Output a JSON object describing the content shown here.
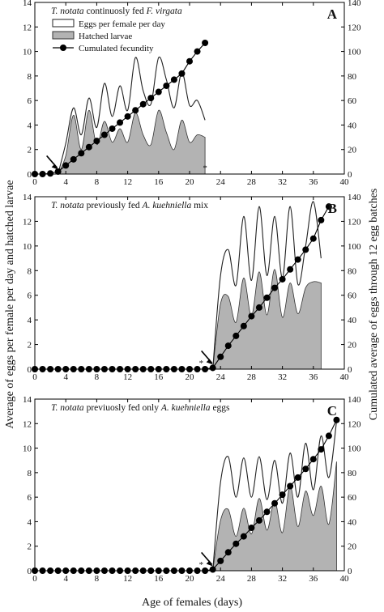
{
  "figure": {
    "y_left_label": "Average of eggs per female per day and hatched larvae",
    "y_right_label": "Cumulated average of eggs through 12 egg batches",
    "x_label": "Age of females (days)"
  },
  "chart_data": [
    {
      "type": "line",
      "panel": "A",
      "title_parts": [
        {
          "text": "T. notata",
          "italic": true
        },
        {
          "text": " continuosly fed ",
          "italic": false
        },
        {
          "text": "F. virgata",
          "italic": true
        }
      ],
      "xlim": [
        0,
        40
      ],
      "xticks": [
        0,
        4,
        8,
        12,
        16,
        20,
        24,
        28,
        32,
        36,
        40
      ],
      "ylim_left": [
        0,
        14
      ],
      "yticks_left": [
        0,
        2,
        4,
        6,
        8,
        10,
        12,
        14
      ],
      "ylim_right": [
        0,
        140
      ],
      "yticks_right": [
        0,
        20,
        40,
        60,
        80,
        100,
        120,
        140
      ],
      "legend": {
        "placement": "top-left",
        "entries": [
          {
            "label": "Eggs per female per day",
            "marker": "line-box"
          },
          {
            "label": "Hatched larvae",
            "marker": "gray-box"
          },
          {
            "label": "Cumulated fecundity",
            "marker": "line-dot"
          }
        ]
      },
      "annotations": [
        {
          "text": "*",
          "x": 22,
          "y": 0.4
        },
        {
          "text": "arrow",
          "x": 3,
          "y": 0.3
        }
      ],
      "series": [
        {
          "name": "Eggs per female per day",
          "axis": "left",
          "x": [
            3,
            4,
            5,
            6,
            7,
            8,
            9,
            10,
            11,
            12,
            13,
            14,
            15,
            16,
            17,
            18,
            19,
            20,
            21,
            22
          ],
          "y": [
            0,
            2.5,
            5.4,
            3.2,
            6.2,
            3.8,
            7.4,
            4.7,
            7.2,
            5.2,
            9.5,
            6.8,
            5.7,
            9.5,
            7.7,
            5.4,
            8.3,
            5.6,
            6.0,
            4.4
          ]
        },
        {
          "name": "Hatched larvae",
          "axis": "left",
          "x": [
            3,
            4,
            5,
            6,
            7,
            8,
            9,
            10,
            11,
            12,
            13,
            14,
            15,
            16,
            17,
            18,
            19,
            20,
            21,
            22
          ],
          "y": [
            0,
            1.5,
            4.8,
            2.0,
            5.2,
            2.4,
            4.3,
            2.6,
            3.7,
            2.6,
            5.0,
            3.2,
            2.4,
            5.2,
            3.4,
            2.0,
            4.4,
            2.6,
            3.2,
            3.0
          ]
        },
        {
          "name": "Cumulated fecundity",
          "axis": "right",
          "x": [
            0,
            1,
            2,
            3,
            4,
            5,
            6,
            7,
            8,
            9,
            10,
            11,
            12,
            13,
            14,
            15,
            16,
            17,
            18,
            19,
            20,
            21,
            22
          ],
          "y": [
            0,
            0,
            0.5,
            2,
            7,
            12,
            17,
            22,
            27,
            32,
            37,
            42,
            47,
            52,
            57,
            62,
            67,
            72,
            77,
            82,
            92,
            100,
            107
          ]
        }
      ]
    },
    {
      "type": "line",
      "panel": "B",
      "title_parts": [
        {
          "text": "T. notata",
          "italic": true
        },
        {
          "text": " previously fed ",
          "italic": false
        },
        {
          "text": "A. kuehniella",
          "italic": true
        },
        {
          "text": " mix",
          "italic": false
        }
      ],
      "xlim": [
        0,
        40
      ],
      "xticks": [
        0,
        4,
        8,
        12,
        16,
        20,
        24,
        28,
        32,
        36,
        40
      ],
      "ylim_left": [
        0,
        14
      ],
      "yticks_left": [
        0,
        2,
        4,
        6,
        8,
        10,
        12,
        14
      ],
      "ylim_right": [
        0,
        140
      ],
      "yticks_right": [
        0,
        20,
        40,
        60,
        80,
        100,
        120,
        140
      ],
      "annotations": [
        {
          "text": "*",
          "x": 21.5,
          "y": 0.4
        },
        {
          "text": "arrow",
          "x": 23,
          "y": 0.3
        }
      ],
      "series": [
        {
          "name": "Eggs per female per day",
          "axis": "left",
          "x": [
            23,
            24,
            25,
            26,
            27,
            28,
            29,
            30,
            31,
            32,
            33,
            34,
            35,
            36,
            37
          ],
          "y": [
            0,
            7.6,
            9.7,
            6.8,
            12.4,
            7.2,
            13.2,
            7.6,
            12.4,
            7.4,
            13.2,
            6.9,
            10.0,
            13.6,
            9.0
          ]
        },
        {
          "name": "Hatched larvae",
          "axis": "left",
          "x": [
            23,
            24,
            25,
            26,
            27,
            28,
            29,
            30,
            31,
            32,
            33,
            34,
            35,
            36,
            37
          ],
          "y": [
            0,
            5.3,
            5.9,
            3.8,
            7.4,
            4.3,
            7.9,
            4.4,
            8.1,
            4.2,
            7.0,
            4.5,
            6.6,
            7.1,
            7.0
          ]
        },
        {
          "name": "Cumulated fecundity",
          "axis": "right",
          "x": [
            0,
            1,
            2,
            3,
            4,
            5,
            6,
            7,
            8,
            9,
            10,
            11,
            12,
            13,
            14,
            15,
            16,
            17,
            18,
            19,
            20,
            21,
            22,
            23,
            24,
            25,
            26,
            27,
            28,
            29,
            30,
            31,
            32,
            33,
            34,
            35,
            36,
            37,
            38
          ],
          "y": [
            0,
            0,
            0,
            0,
            0,
            0,
            0,
            0,
            0,
            0,
            0,
            0,
            0,
            0,
            0,
            0,
            0,
            0,
            0,
            0,
            0,
            0,
            0,
            1,
            10,
            19,
            27,
            35,
            43,
            50,
            58,
            66,
            73,
            81,
            89,
            97,
            106,
            121,
            132
          ]
        }
      ]
    },
    {
      "type": "line",
      "panel": "C",
      "title_parts": [
        {
          "text": "T. notata",
          "italic": true
        },
        {
          "text": " previuosly fed only ",
          "italic": false
        },
        {
          "text": "A. kuehniella",
          "italic": true
        },
        {
          "text": " eggs",
          "italic": false
        }
      ],
      "xlim": [
        0,
        40
      ],
      "xticks": [
        0,
        4,
        8,
        12,
        16,
        20,
        24,
        28,
        32,
        36,
        40
      ],
      "ylim_left": [
        0,
        14
      ],
      "yticks_left": [
        0,
        2,
        4,
        6,
        8,
        10,
        12,
        14
      ],
      "ylim_right": [
        0,
        140
      ],
      "yticks_right": [
        0,
        20,
        40,
        60,
        80,
        100,
        120,
        140
      ],
      "annotations": [
        {
          "text": "*",
          "x": 21.5,
          "y": 0.4
        },
        {
          "text": "arrow",
          "x": 23,
          "y": 0.3
        }
      ],
      "series": [
        {
          "name": "Eggs per female per day",
          "axis": "left",
          "x": [
            23,
            24,
            25,
            26,
            27,
            28,
            29,
            30,
            31,
            32,
            33,
            34,
            35,
            36,
            37,
            38,
            39
          ],
          "y": [
            0,
            7.2,
            9.3,
            6.0,
            9.2,
            6.0,
            9.3,
            5.8,
            9.0,
            5.5,
            9.6,
            6.0,
            10.4,
            6.6,
            11.0,
            7.6,
            12.2
          ]
        },
        {
          "name": "Hatched larvae",
          "axis": "left",
          "x": [
            23,
            24,
            25,
            26,
            27,
            28,
            29,
            30,
            31,
            32,
            33,
            34,
            35,
            36,
            37,
            38,
            39
          ],
          "y": [
            0,
            4.1,
            5.0,
            2.8,
            5.1,
            3.0,
            5.9,
            3.3,
            5.7,
            3.1,
            6.9,
            3.6,
            6.5,
            4.5,
            6.9,
            3.8,
            8.9
          ]
        },
        {
          "name": "Cumulated fecundity",
          "axis": "right",
          "x": [
            0,
            1,
            2,
            3,
            4,
            5,
            6,
            7,
            8,
            9,
            10,
            11,
            12,
            13,
            14,
            15,
            16,
            17,
            18,
            19,
            20,
            21,
            22,
            23,
            24,
            25,
            26,
            27,
            28,
            29,
            30,
            31,
            32,
            33,
            34,
            35,
            36,
            37,
            38,
            39
          ],
          "y": [
            0,
            0,
            0,
            0,
            0,
            0,
            0,
            0,
            0,
            0,
            0,
            0,
            0,
            0,
            0,
            0,
            0,
            0,
            0,
            0,
            0,
            0,
            0,
            1,
            8,
            15,
            22,
            28,
            35,
            41,
            48,
            55,
            62,
            69,
            76,
            83,
            91,
            99,
            110,
            123
          ]
        }
      ]
    }
  ]
}
